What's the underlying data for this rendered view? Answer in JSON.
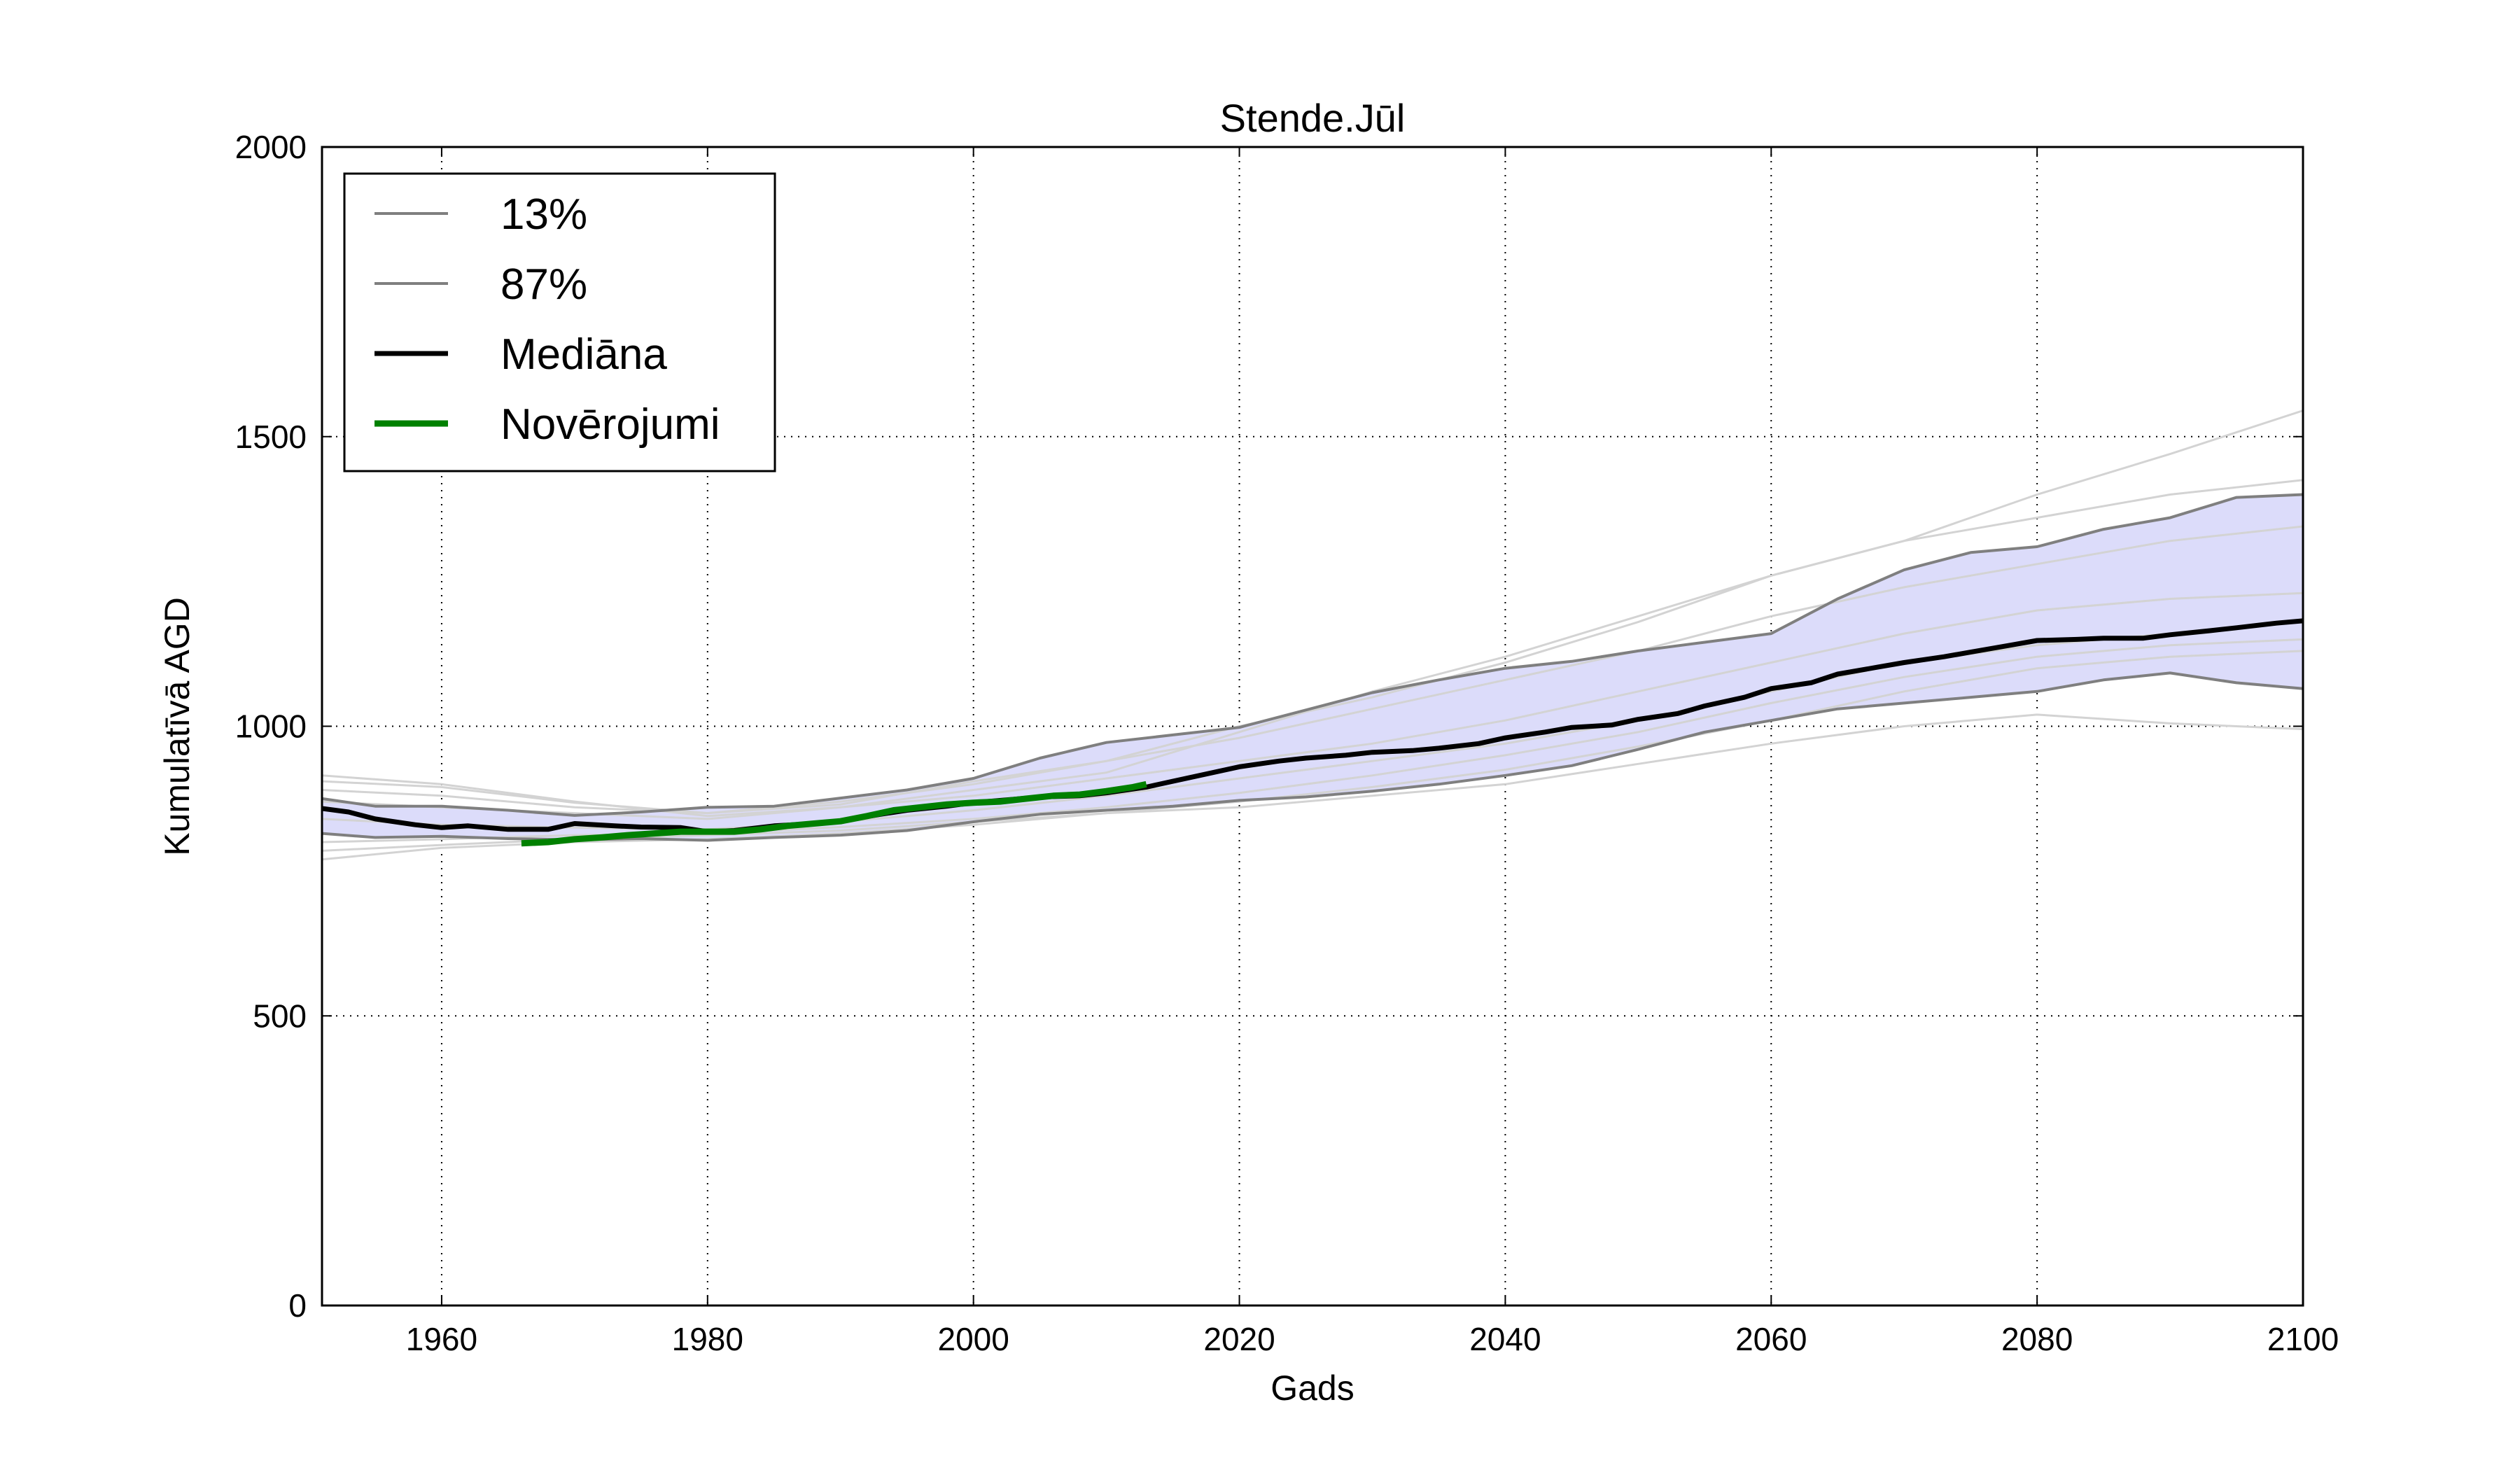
{
  "chart_data": {
    "type": "line",
    "title": "Stende.Jūl",
    "xlabel": "Gads",
    "ylabel": "Kumulatīvā AGD",
    "xlim": [
      1951,
      2100
    ],
    "ylim": [
      0,
      2000
    ],
    "xticks": [
      1960,
      1980,
      2000,
      2020,
      2040,
      2060,
      2080,
      2100
    ],
    "yticks": [
      0,
      500,
      1000,
      1500,
      2000
    ],
    "grid": true,
    "legend_position": "top-left",
    "band": {
      "fill": "#dcdcfa",
      "lower_series": "13%",
      "upper_series": "87%"
    },
    "series": [
      {
        "name": "13%",
        "role": "percentile-low",
        "color": "#7f7f7f",
        "x": [
          1951,
          1955,
          1960,
          1965,
          1970,
          1975,
          1980,
          1985,
          1990,
          1995,
          2000,
          2005,
          2010,
          2015,
          2020,
          2025,
          2030,
          2035,
          2040,
          2045,
          2050,
          2055,
          2060,
          2065,
          2070,
          2075,
          2080,
          2085,
          2090,
          2095,
          2100
        ],
        "values": [
          815,
          808,
          810,
          806,
          804,
          806,
          803,
          808,
          812,
          820,
          835,
          848,
          855,
          862,
          872,
          878,
          888,
          900,
          915,
          932,
          960,
          990,
          1010,
          1030,
          1040,
          1050,
          1060,
          1080,
          1092,
          1075,
          1065
        ]
      },
      {
        "name": "87%",
        "role": "percentile-high",
        "color": "#7f7f7f",
        "x": [
          1951,
          1955,
          1960,
          1965,
          1970,
          1975,
          1980,
          1985,
          1990,
          1995,
          2000,
          2005,
          2010,
          2015,
          2020,
          2025,
          2030,
          2035,
          2040,
          2045,
          2050,
          2055,
          2060,
          2065,
          2070,
          2075,
          2080,
          2085,
          2090,
          2095,
          2100
        ],
        "values": [
          875,
          862,
          862,
          855,
          846,
          852,
          860,
          862,
          876,
          890,
          910,
          945,
          972,
          985,
          998,
          1028,
          1058,
          1080,
          1100,
          1112,
          1130,
          1145,
          1160,
          1220,
          1270,
          1300,
          1310,
          1340,
          1360,
          1395,
          1400
        ]
      },
      {
        "name": "Mediāna",
        "role": "median",
        "color": "#000000",
        "x": [
          1951,
          1953,
          1955,
          1958,
          1960,
          1962,
          1965,
          1968,
          1970,
          1973,
          1975,
          1978,
          1980,
          1982,
          1985,
          1988,
          1990,
          1993,
          1995,
          1998,
          2000,
          2003,
          2005,
          2008,
          2010,
          2013,
          2015,
          2018,
          2020,
          2023,
          2025,
          2028,
          2030,
          2033,
          2035,
          2038,
          2040,
          2043,
          2045,
          2048,
          2050,
          2053,
          2055,
          2058,
          2060,
          2063,
          2065,
          2068,
          2070,
          2073,
          2075,
          2078,
          2080,
          2083,
          2085,
          2088,
          2090,
          2093,
          2095,
          2098,
          2100
        ],
        "values": [
          858,
          852,
          840,
          830,
          825,
          828,
          822,
          822,
          832,
          828,
          826,
          825,
          818,
          820,
          828,
          832,
          836,
          848,
          855,
          862,
          868,
          874,
          878,
          880,
          885,
          895,
          905,
          920,
          930,
          940,
          945,
          950,
          955,
          958,
          962,
          970,
          980,
          990,
          998,
          1002,
          1012,
          1022,
          1035,
          1050,
          1065,
          1075,
          1090,
          1102,
          1110,
          1120,
          1128,
          1140,
          1148,
          1150,
          1152,
          1152,
          1158,
          1165,
          1170,
          1178,
          1182
        ]
      },
      {
        "name": "Novērojumi",
        "role": "observations",
        "color": "#008000",
        "x": [
          1966,
          1968,
          1970,
          1972,
          1974,
          1976,
          1978,
          1980,
          1982,
          1984,
          1986,
          1988,
          1990,
          1992,
          1994,
          1996,
          1998,
          2000,
          2002,
          2004,
          2006,
          2008,
          2010,
          2012,
          2013
        ],
        "values": [
          798,
          800,
          805,
          808,
          812,
          815,
          818,
          818,
          818,
          822,
          828,
          832,
          836,
          845,
          855,
          860,
          865,
          868,
          870,
          875,
          880,
          882,
          888,
          895,
          900
        ]
      }
    ],
    "ensemble_members": {
      "color": "#d3d3d3",
      "x": [
        1951,
        1960,
        1970,
        1980,
        1990,
        2000,
        2010,
        2020,
        2030,
        2040,
        2050,
        2060,
        2070,
        2080,
        2090,
        2100
      ],
      "members": [
        [
          915,
          900,
          870,
          845,
          860,
          890,
          920,
          990,
          1060,
          1120,
          1190,
          1260,
          1320,
          1400,
          1470,
          1545
        ],
        [
          905,
          895,
          868,
          850,
          865,
          905,
          940,
          1000,
          1050,
          1110,
          1180,
          1260,
          1320,
          1360,
          1400,
          1425
        ],
        [
          890,
          880,
          860,
          850,
          870,
          900,
          940,
          980,
          1030,
          1080,
          1130,
          1190,
          1240,
          1280,
          1320,
          1345
        ],
        [
          870,
          860,
          850,
          840,
          860,
          880,
          910,
          940,
          970,
          1010,
          1060,
          1110,
          1160,
          1200,
          1220,
          1230
        ],
        [
          840,
          830,
          825,
          822,
          835,
          855,
          880,
          910,
          940,
          970,
          1010,
          1060,
          1110,
          1140,
          1160,
          1180
        ],
        [
          800,
          805,
          812,
          815,
          826,
          840,
          860,
          885,
          915,
          950,
          990,
          1040,
          1085,
          1120,
          1140,
          1150
        ],
        [
          785,
          795,
          805,
          812,
          820,
          835,
          850,
          870,
          895,
          925,
          965,
          1010,
          1060,
          1100,
          1120,
          1130
        ],
        [
          770,
          790,
          800,
          805,
          815,
          830,
          850,
          860,
          880,
          900,
          935,
          970,
          1000,
          1020,
          1005,
          995
        ]
      ]
    }
  }
}
